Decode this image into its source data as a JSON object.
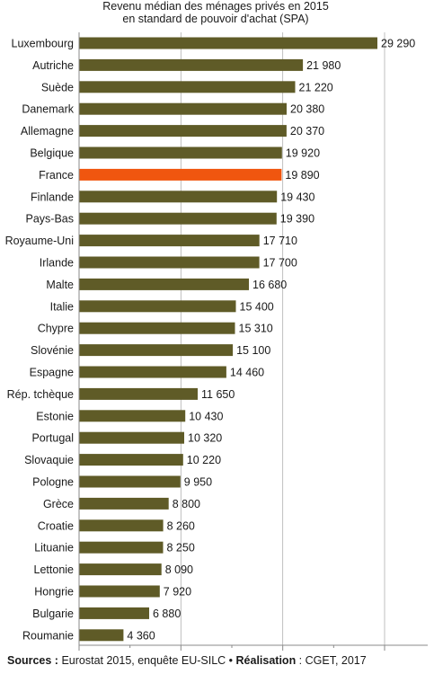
{
  "chart_data": {
    "type": "bar",
    "orientation": "horizontal",
    "title_lines": [
      "Revenu médian des ménages privés en 2015",
      "en standard de pouvoir d'achat (SPA)"
    ],
    "categories": [
      "Luxembourg",
      "Autriche",
      "Suède",
      "Danemark",
      "Allemagne",
      "Belgique",
      "France",
      "Finlande",
      "Pays-Bas",
      "Royaume-Uni",
      "Irlande",
      "Malte",
      "Italie",
      "Chypre",
      "Slovénie",
      "Espagne",
      "Rép. tchèque",
      "Estonie",
      "Portugal",
      "Slovaquie",
      "Pologne",
      "Grèce",
      "Croatie",
      "Lituanie",
      "Lettonie",
      "Hongrie",
      "Bulgarie",
      "Roumanie"
    ],
    "values": [
      29290,
      21980,
      21220,
      20380,
      20370,
      19920,
      19890,
      19430,
      19390,
      17710,
      17700,
      16680,
      15400,
      15310,
      15100,
      14460,
      11650,
      10430,
      10320,
      10220,
      9950,
      8800,
      8260,
      8250,
      8090,
      7920,
      6880,
      4360
    ],
    "value_labels": [
      "29 290",
      "21 980",
      "21 220",
      "20 380",
      "20 370",
      "19 920",
      "19 890",
      "19 430",
      "19 390",
      "17 710",
      "17 700",
      "16 680",
      "15 400",
      "15 310",
      "15 100",
      "14 460",
      "11 650",
      "10 430",
      "10 320",
      "10 220",
      "9 950",
      "8 800",
      "8 260",
      "8 250",
      "8 090",
      "7 920",
      "6 880",
      "4 360"
    ],
    "highlight_category": "France",
    "colors": {
      "bar": "#5f5b27",
      "highlight": "#f0560f",
      "axis": "#8a8a8a",
      "grid": "#b0b0b0"
    },
    "xlim": [
      0,
      35000
    ],
    "x_ticks": [
      0,
      10000,
      20000,
      30000
    ],
    "grid": true,
    "legend": "none"
  },
  "source": {
    "sources_label": "Sources :",
    "sources_text": " Eurostat 2015, enquête EU-SILC • ",
    "realisation_label": "Réalisation",
    "realisation_text": " : CGET, 2017"
  }
}
